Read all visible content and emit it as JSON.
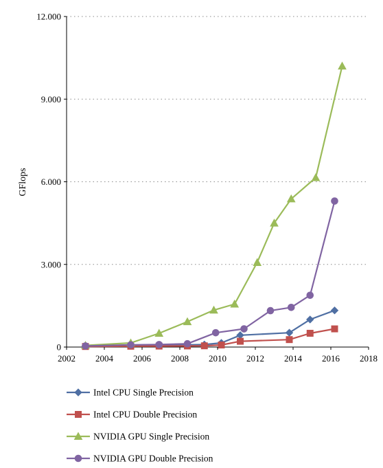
{
  "chart_data": {
    "type": "line",
    "title": "",
    "xlabel": "",
    "ylabel": "GFlops",
    "xlim": [
      2002,
      2018
    ],
    "ylim": [
      0,
      12000
    ],
    "x_ticks": [
      2002,
      2004,
      2006,
      2008,
      2010,
      2012,
      2014,
      2016,
      2018
    ],
    "x_tick_labels": [
      "2002",
      "2004",
      "2006",
      "2008",
      "2010",
      "2012",
      "2014",
      "2016",
      "2018"
    ],
    "y_ticks": [
      0,
      3000,
      6000,
      9000,
      12000
    ],
    "y_tick_labels": [
      "0",
      "3.000",
      "6.000",
      "9.000",
      "12.000"
    ],
    "grid": "horizontal dotted",
    "legend_position": "bottom",
    "series": [
      {
        "name": "Intel CPU Single Precision",
        "color": "#4f6fa3",
        "marker": "diamond",
        "points": [
          [
            2003.0,
            40
          ],
          [
            2005.4,
            60
          ],
          [
            2006.9,
            70
          ],
          [
            2008.4,
            80
          ],
          [
            2009.3,
            90
          ],
          [
            2010.2,
            150
          ],
          [
            2011.2,
            430
          ],
          [
            2013.8,
            520
          ],
          [
            2014.9,
            1000
          ],
          [
            2016.2,
            1330
          ]
        ]
      },
      {
        "name": "Intel CPU Double Precision",
        "color": "#c0504d",
        "marker": "square",
        "points": [
          [
            2003.0,
            20
          ],
          [
            2005.4,
            30
          ],
          [
            2006.9,
            35
          ],
          [
            2008.4,
            40
          ],
          [
            2009.3,
            45
          ],
          [
            2010.2,
            75
          ],
          [
            2011.2,
            210
          ],
          [
            2013.8,
            270
          ],
          [
            2014.9,
            500
          ],
          [
            2016.2,
            660
          ]
        ]
      },
      {
        "name": "NVIDIA GPU Single Precision",
        "color": "#9bbb59",
        "marker": "triangle",
        "points": [
          [
            2003.0,
            60
          ],
          [
            2005.4,
            150
          ],
          [
            2006.9,
            500
          ],
          [
            2008.4,
            920
          ],
          [
            2009.8,
            1340
          ],
          [
            2010.9,
            1560
          ],
          [
            2012.1,
            3070
          ],
          [
            2013.0,
            4500
          ],
          [
            2013.9,
            5380
          ],
          [
            2015.2,
            6150
          ],
          [
            2016.6,
            10200
          ]
        ]
      },
      {
        "name": "NVIDIA GPU Double Precision",
        "color": "#8064a2",
        "marker": "circle",
        "points": [
          [
            2003.0,
            40
          ],
          [
            2005.4,
            80
          ],
          [
            2006.9,
            90
          ],
          [
            2008.4,
            120
          ],
          [
            2009.9,
            520
          ],
          [
            2011.4,
            660
          ],
          [
            2012.8,
            1320
          ],
          [
            2013.9,
            1440
          ],
          [
            2014.9,
            1880
          ],
          [
            2016.2,
            5300
          ]
        ]
      }
    ]
  }
}
